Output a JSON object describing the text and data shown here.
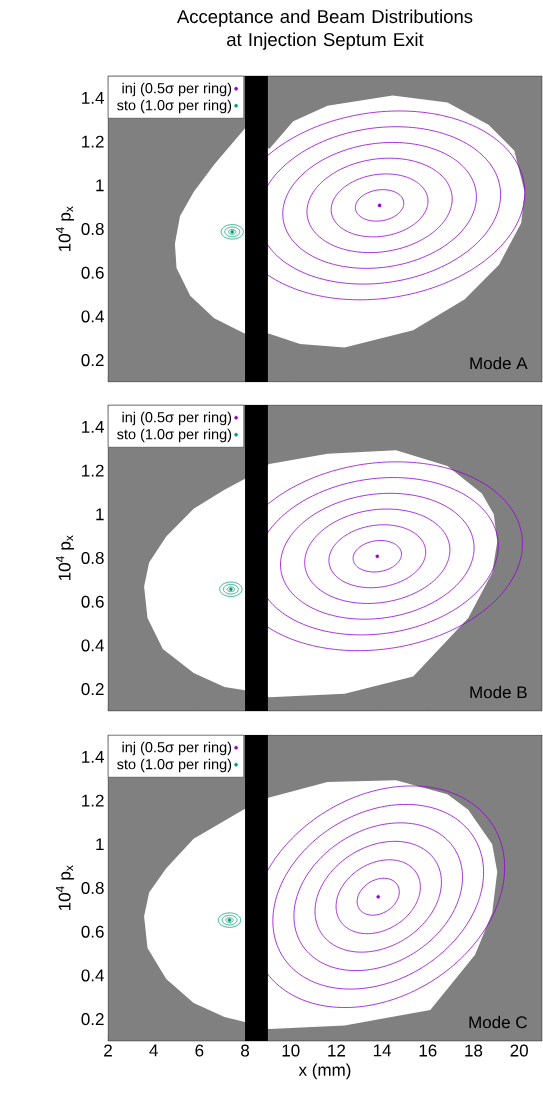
{
  "chart_data": [
    {
      "type": "scatter",
      "title": "Acceptance and Beam Distributions at Injection Septum Exit",
      "ylabel": "10$^{4}$ p$_{x}$",
      "annotations": [
        "Mode A"
      ],
      "xlim": [
        2,
        21
      ],
      "ylim": [
        0.1,
        1.5
      ],
      "xticks": [
        2,
        4,
        6,
        8,
        10,
        12,
        14,
        16,
        18,
        20
      ],
      "yticks": [
        0.2,
        0.4,
        0.6,
        0.8,
        1,
        1.2,
        1.4
      ],
      "tick_labels": "y",
      "legend": "top left",
      "bands": [
        {
          "axis": "x",
          "from": 8,
          "to": 9,
          "color": "#000000"
        }
      ],
      "series": [
        {
          "type": "area",
          "color": "#ffffff",
          "x": [
            8.0,
            6.65,
            5.75,
            5.15,
            4.93,
            5.0,
            5.6,
            6.65,
            8.0,
            9.06,
            10.41,
            12.36,
            15.36,
            17.62,
            19.12,
            20.09,
            20.24,
            19.79,
            18.66,
            16.86,
            14.46,
            11.61,
            10.11,
            9.06
          ],
          "values": [
            1.261,
            1.095,
            0.969,
            0.858,
            0.732,
            0.621,
            0.495,
            0.392,
            0.321,
            0.321,
            0.274,
            0.258,
            0.337,
            0.479,
            0.637,
            0.827,
            0.969,
            1.158,
            1.277,
            1.379,
            1.411,
            1.364,
            1.293,
            1.166
          ]
        },
        {
          "name": "inj (0.5σ per ring)",
          "color": "#9400d3",
          "marker": "circle",
          "x": [
            13.89
          ],
          "values": [
            0.908
          ]
        },
        {
          "name": "sto (1.0σ per ring)",
          "color": "#009e73",
          "marker": "circle",
          "x": [
            7.44
          ],
          "values": [
            0.787
          ]
        }
      ]
    },
    {
      "type": "scatter",
      "ylabel": "10$^{4}$ p$_{x}$",
      "annotations": [
        "Mode B"
      ],
      "xlim": [
        2,
        21
      ],
      "ylim": [
        0.1,
        1.5
      ],
      "xticks": [
        2,
        4,
        6,
        8,
        10,
        12,
        14,
        16,
        18,
        20
      ],
      "yticks": [
        0.2,
        0.4,
        0.6,
        0.8,
        1,
        1.2,
        1.4
      ],
      "tick_labels": "y",
      "legend": "top left",
      "bands": [
        {
          "axis": "x",
          "from": 8,
          "to": 9,
          "color": "#000000"
        }
      ],
      "series": [
        {
          "type": "area",
          "color": "#ffffff",
          "x": [
            8.0,
            7.1,
            5.75,
            4.55,
            3.8,
            3.58,
            3.73,
            4.4,
            5.75,
            7.1,
            8.0,
            9.06,
            12.36,
            15.36,
            17.77,
            18.82,
            19.04,
            18.89,
            18.37,
            16.86,
            14.61,
            11.61,
            9.06
          ],
          "values": [
            1.162,
            1.112,
            1.025,
            0.898,
            0.779,
            0.669,
            0.526,
            0.384,
            0.274,
            0.21,
            0.195,
            0.163,
            0.179,
            0.258,
            0.526,
            0.732,
            0.874,
            1.0,
            1.095,
            1.221,
            1.293,
            1.277,
            1.23
          ]
        },
        {
          "name": "inj (0.5σ per ring)",
          "color": "#9400d3",
          "marker": "circle",
          "x": [
            13.79
          ],
          "values": [
            0.808
          ]
        },
        {
          "name": "sto (1.0σ per ring)",
          "color": "#009e73",
          "marker": "circle",
          "x": [
            7.38
          ],
          "values": [
            0.657
          ]
        }
      ]
    },
    {
      "type": "scatter",
      "xlabel": "x (mm)",
      "ylabel": "10$^{4}$ p$_{x}$",
      "annotations": [
        "Mode C"
      ],
      "xlim": [
        2,
        21
      ],
      "ylim": [
        0.1,
        1.5
      ],
      "xticks": [
        2,
        4,
        6,
        8,
        10,
        12,
        14,
        16,
        18,
        20
      ],
      "yticks": [
        0.2,
        0.4,
        0.6,
        0.8,
        1,
        1.2,
        1.4
      ],
      "legend": "top left",
      "bands": [
        {
          "axis": "x",
          "from": 8,
          "to": 9,
          "color": "#000000"
        }
      ],
      "series": [
        {
          "type": "area",
          "color": "#ffffff",
          "x": [
            8.0,
            5.75,
            4.55,
            3.8,
            3.58,
            3.73,
            4.55,
            5.75,
            7.1,
            8.0,
            9.06,
            12.36,
            16.11,
            18.07,
            18.82,
            19.04,
            18.82,
            17.77,
            16.86,
            14.61,
            11.61,
            9.06
          ],
          "values": [
            1.162,
            1.025,
            0.89,
            0.779,
            0.669,
            0.526,
            0.384,
            0.274,
            0.21,
            0.187,
            0.155,
            0.171,
            0.242,
            0.495,
            0.685,
            0.874,
            1.0,
            1.158,
            1.229,
            1.293,
            1.285,
            1.214
          ]
        },
        {
          "name": "inj (0.5σ per ring)",
          "color": "#9400d3",
          "marker": "circle",
          "x": [
            13.83
          ],
          "values": [
            0.76
          ]
        },
        {
          "name": "sto (1.0σ per ring)",
          "color": "#009e73",
          "marker": "circle",
          "x": [
            7.32
          ],
          "values": [
            0.653
          ]
        }
      ]
    }
  ]
}
